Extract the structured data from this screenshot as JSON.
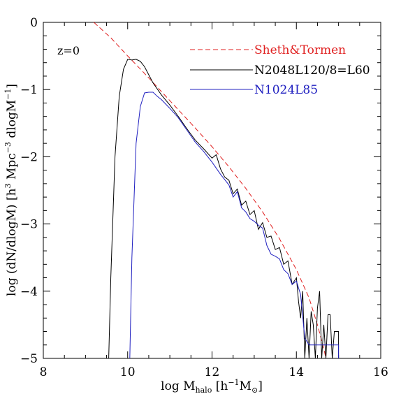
{
  "chart_data": {
    "type": "line",
    "xlabel": "log M_halo [h^-1 M_sun]",
    "ylabel": "log (dN/dlogM) [h^3 Mpc^-3 dlogM^-1]",
    "xlim": [
      8,
      16
    ],
    "ylim": [
      -5,
      0
    ],
    "x_ticks": [
      8,
      10,
      12,
      14,
      16
    ],
    "y_ticks": [
      0,
      -1,
      -2,
      -3,
      -4,
      -5
    ],
    "x_tick_labels": [
      "8",
      "10",
      "12",
      "14",
      "16"
    ],
    "y_tick_labels": [
      "0",
      "−1",
      "−2",
      "−3",
      "−4",
      "−5"
    ],
    "annotation": "z=0",
    "legend_position": "top-right",
    "grid": false,
    "series": [
      {
        "name": "Sheth&Tormen",
        "color": "#e02020",
        "style": "dashed",
        "points": [
          [
            9.2,
            0.0
          ],
          [
            9.6,
            -0.23
          ],
          [
            10.0,
            -0.5
          ],
          [
            10.4,
            -0.76
          ],
          [
            10.8,
            -1.03
          ],
          [
            11.2,
            -1.3
          ],
          [
            11.6,
            -1.57
          ],
          [
            12.0,
            -1.85
          ],
          [
            12.4,
            -2.15
          ],
          [
            12.8,
            -2.47
          ],
          [
            13.2,
            -2.82
          ],
          [
            13.6,
            -3.22
          ],
          [
            14.0,
            -3.68
          ],
          [
            14.3,
            -4.1
          ],
          [
            14.5,
            -4.5
          ],
          [
            14.65,
            -4.85
          ],
          [
            14.7,
            -5.0
          ]
        ]
      },
      {
        "name": "N2048L120/8=L60",
        "color": "#000000",
        "style": "solid",
        "points": [
          [
            9.55,
            -5.0
          ],
          [
            9.6,
            -3.8
          ],
          [
            9.7,
            -2.0
          ],
          [
            9.8,
            -1.1
          ],
          [
            9.9,
            -0.7
          ],
          [
            10.0,
            -0.55
          ],
          [
            10.1,
            -0.56
          ],
          [
            10.2,
            -0.55
          ],
          [
            10.3,
            -0.58
          ],
          [
            10.4,
            -0.66
          ],
          [
            10.5,
            -0.78
          ],
          [
            10.6,
            -0.9
          ],
          [
            10.8,
            -1.08
          ],
          [
            11.0,
            -1.23
          ],
          [
            11.2,
            -1.4
          ],
          [
            11.4,
            -1.58
          ],
          [
            11.6,
            -1.75
          ],
          [
            11.8,
            -1.88
          ],
          [
            12.0,
            -2.02
          ],
          [
            12.1,
            -1.97
          ],
          [
            12.2,
            -2.18
          ],
          [
            12.3,
            -2.3
          ],
          [
            12.4,
            -2.35
          ],
          [
            12.5,
            -2.55
          ],
          [
            12.6,
            -2.48
          ],
          [
            12.7,
            -2.72
          ],
          [
            12.8,
            -2.66
          ],
          [
            12.9,
            -2.86
          ],
          [
            13.0,
            -2.8
          ],
          [
            13.1,
            -3.08
          ],
          [
            13.2,
            -2.98
          ],
          [
            13.3,
            -3.2
          ],
          [
            13.4,
            -3.18
          ],
          [
            13.5,
            -3.38
          ],
          [
            13.6,
            -3.35
          ],
          [
            13.7,
            -3.6
          ],
          [
            13.8,
            -3.55
          ],
          [
            13.9,
            -3.9
          ],
          [
            14.0,
            -3.8
          ],
          [
            14.05,
            -4.15
          ],
          [
            14.1,
            -4.4
          ],
          [
            14.15,
            -4.0
          ],
          [
            14.2,
            -5.0
          ],
          [
            14.25,
            -4.4
          ],
          [
            14.3,
            -5.0
          ],
          [
            14.35,
            -4.3
          ],
          [
            14.4,
            -4.5
          ],
          [
            14.45,
            -5.0
          ],
          [
            14.5,
            -4.25
          ],
          [
            14.55,
            -4.0
          ],
          [
            14.6,
            -5.0
          ],
          [
            14.65,
            -4.5
          ],
          [
            14.7,
            -5.0
          ],
          [
            14.75,
            -4.35
          ],
          [
            14.8,
            -4.35
          ],
          [
            14.85,
            -5.0
          ],
          [
            14.9,
            -4.6
          ],
          [
            15.0,
            -4.6
          ],
          [
            15.0,
            -5.0
          ]
        ]
      },
      {
        "name": "N1024L85",
        "color": "#2020c0",
        "style": "solid",
        "points": [
          [
            10.05,
            -5.0
          ],
          [
            10.1,
            -3.5
          ],
          [
            10.2,
            -1.8
          ],
          [
            10.3,
            -1.25
          ],
          [
            10.4,
            -1.05
          ],
          [
            10.5,
            -1.04
          ],
          [
            10.6,
            -1.04
          ],
          [
            10.7,
            -1.1
          ],
          [
            10.8,
            -1.15
          ],
          [
            11.0,
            -1.28
          ],
          [
            11.2,
            -1.42
          ],
          [
            11.4,
            -1.6
          ],
          [
            11.6,
            -1.78
          ],
          [
            11.8,
            -1.92
          ],
          [
            12.0,
            -2.08
          ],
          [
            12.2,
            -2.26
          ],
          [
            12.4,
            -2.42
          ],
          [
            12.5,
            -2.6
          ],
          [
            12.6,
            -2.52
          ],
          [
            12.7,
            -2.76
          ],
          [
            12.8,
            -2.82
          ],
          [
            12.9,
            -2.92
          ],
          [
            13.0,
            -2.96
          ],
          [
            13.1,
            -3.02
          ],
          [
            13.2,
            -3.06
          ],
          [
            13.3,
            -3.32
          ],
          [
            13.4,
            -3.45
          ],
          [
            13.5,
            -3.48
          ],
          [
            13.6,
            -3.52
          ],
          [
            13.7,
            -3.68
          ],
          [
            13.8,
            -3.74
          ],
          [
            13.9,
            -3.9
          ],
          [
            14.0,
            -3.85
          ],
          [
            14.1,
            -4.05
          ],
          [
            14.2,
            -4.7
          ],
          [
            14.3,
            -4.8
          ],
          [
            14.4,
            -4.8
          ],
          [
            14.5,
            -4.8
          ],
          [
            14.6,
            -4.8
          ],
          [
            14.7,
            -4.8
          ],
          [
            14.8,
            -4.8
          ],
          [
            14.9,
            -4.8
          ],
          [
            15.0,
            -4.8
          ],
          [
            15.0,
            -5.0
          ]
        ]
      }
    ]
  }
}
